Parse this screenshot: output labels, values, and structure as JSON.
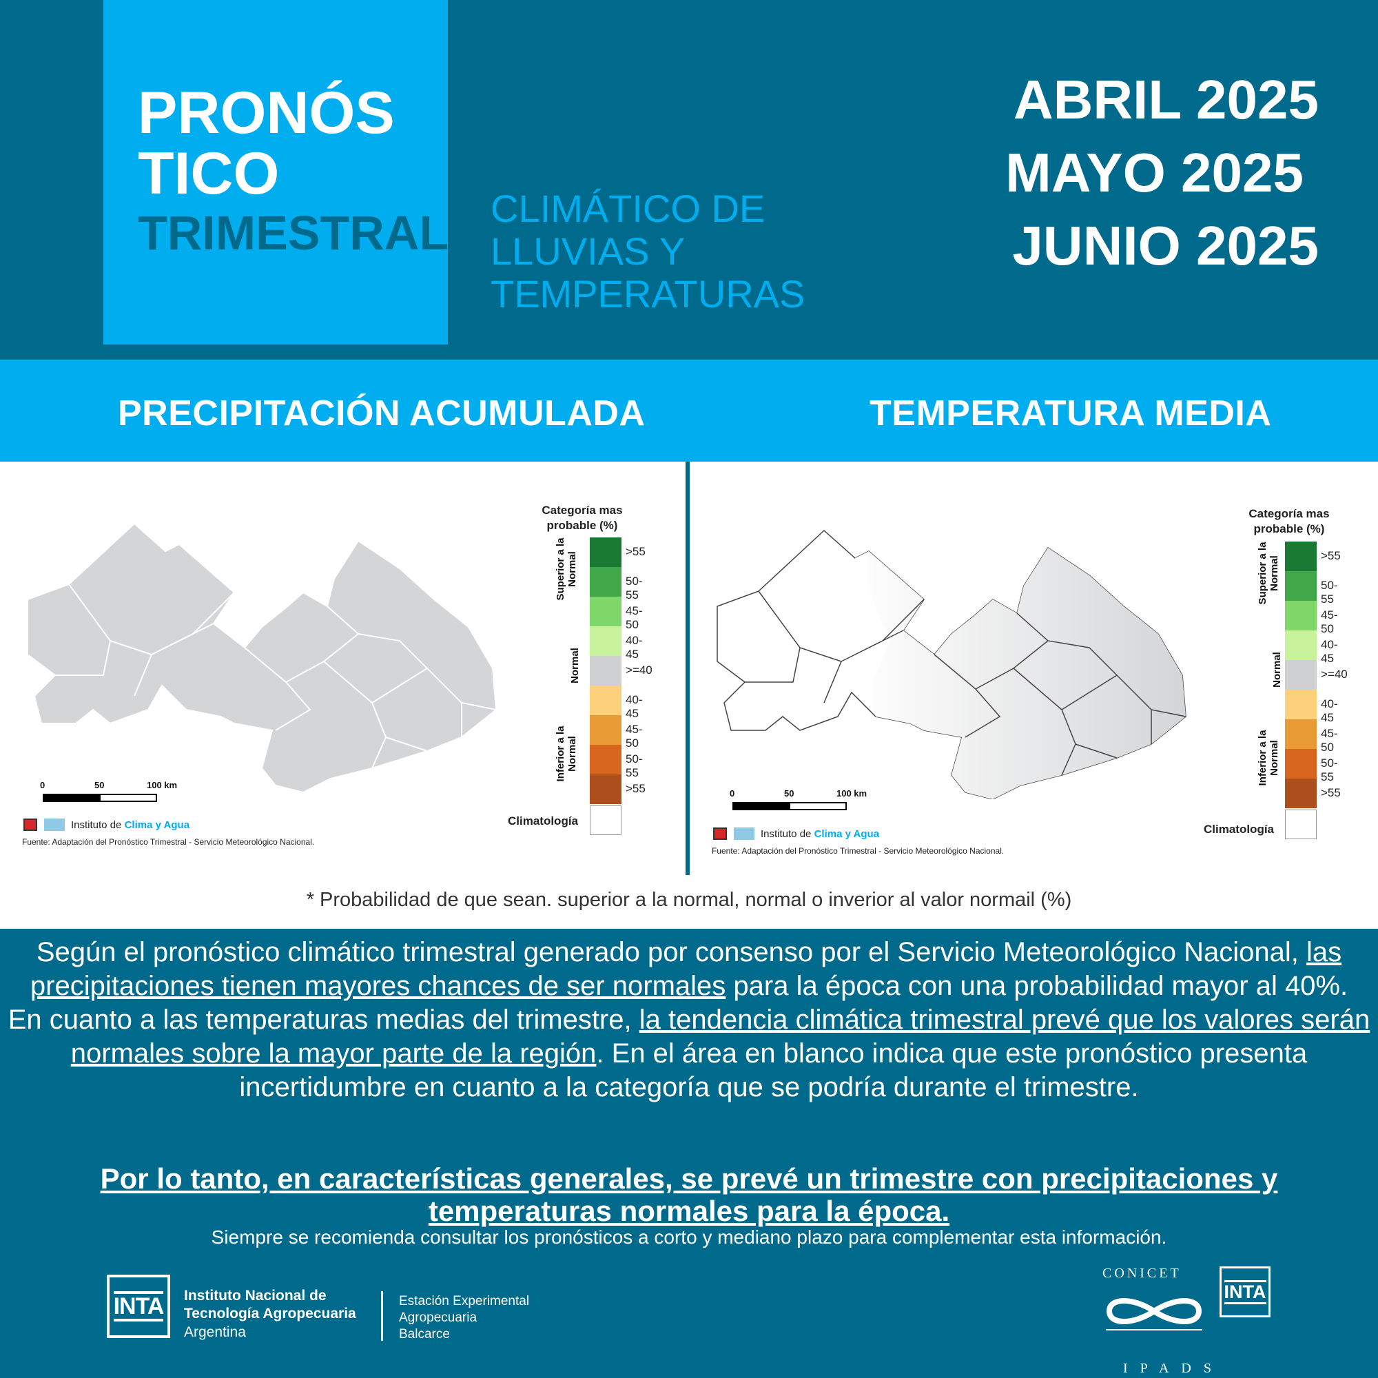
{
  "header": {
    "title_line1": "PRONÓS",
    "title_line2": "TICO",
    "title_line3": "TRIMESTRAL",
    "subtitle_line1": "CLIMÁTICO DE",
    "subtitle_line2": "LLUVIAS Y",
    "subtitle_line3": "TEMPERATURAS",
    "months": [
      "ABRIL 2025",
      "MAYO 2025",
      "JUNIO 2025"
    ]
  },
  "sections": {
    "left_title": "PRECIPITACIÓN ACUMULADA",
    "right_title": "TEMPERATURA MEDIA"
  },
  "legend": {
    "title": "Categoría mas probable (%)",
    "superior_label": "Superior a la Normal",
    "normal_label": "Normal",
    "inferior_label": "Inferior a la Normal",
    "items": [
      {
        "label": ">55",
        "color": "#1a7a33"
      },
      {
        "label": "50-55",
        "color": "#41a84a"
      },
      {
        "label": "45-50",
        "color": "#7fd76a"
      },
      {
        "label": "40-45",
        "color": "#c8f29c"
      },
      {
        "label": ">=40",
        "color": "#cfd0d2"
      },
      {
        "label": "40-45",
        "color": "#fdd17c"
      },
      {
        "label": "45-50",
        "color": "#e89a35"
      },
      {
        "label": "50-55",
        "color": "#d9661f"
      },
      {
        "label": ">55",
        "color": "#ad4f1c"
      }
    ],
    "climatologia": "Climatología"
  },
  "map_common": {
    "scale_0": "0",
    "scale_50": "50",
    "scale_100": "100 km",
    "institute_prefix": "Instituto de",
    "institute_highlight": "Clima y Agua",
    "source": "Fuente: Adaptación del Pronóstico Trimestral - Servicio Meteorológico Nacional."
  },
  "footnote": "* Probabilidad de que sean. superior a la normal, normal o inverior al valor normail (%)",
  "body": {
    "p1_a": "Según el pronóstico climático trimestral generado por consenso por el Servicio Meteorológico Nacional, ",
    "p1_u": "las precipitaciones tienen mayores chances de ser normales",
    "p1_b": " para la época con una probabilidad mayor al 40%.",
    "p2_a": "En cuanto a las temperaturas medias del trimestre, ",
    "p2_u": "la tendencia climática trimestral prevé que los valores serán normales sobre la mayor parte de la región",
    "p2_b": ". En el área en blanco indica que este pronóstico presenta incertidumbre en cuanto a la categoría que se podría durante el trimestre."
  },
  "conclusion": "Por lo tanto, en características generales, se prevé un trimestre con precipitaciones y temperaturas normales para la época.",
  "recommend": "Siempre se recomienda consultar los pronósticos a corto y mediano plazo para complementar esta información.",
  "footer": {
    "inta_logo": "INTA",
    "org_line1": "Instituto Nacional de",
    "org_line2": "Tecnología Agropecuaria",
    "org_country": "Argentina",
    "station_line1": "Estación Experimental",
    "station_line2": "Agropecuaria",
    "station_line3": "Balcarce",
    "conicet": "CONICET",
    "ipads": "IPADS",
    "inta_logo2": "INTA"
  },
  "colors": {
    "dark_blue": "#006a8c",
    "light_blue": "#00aeef",
    "map_gray": "#d4d5d7"
  }
}
